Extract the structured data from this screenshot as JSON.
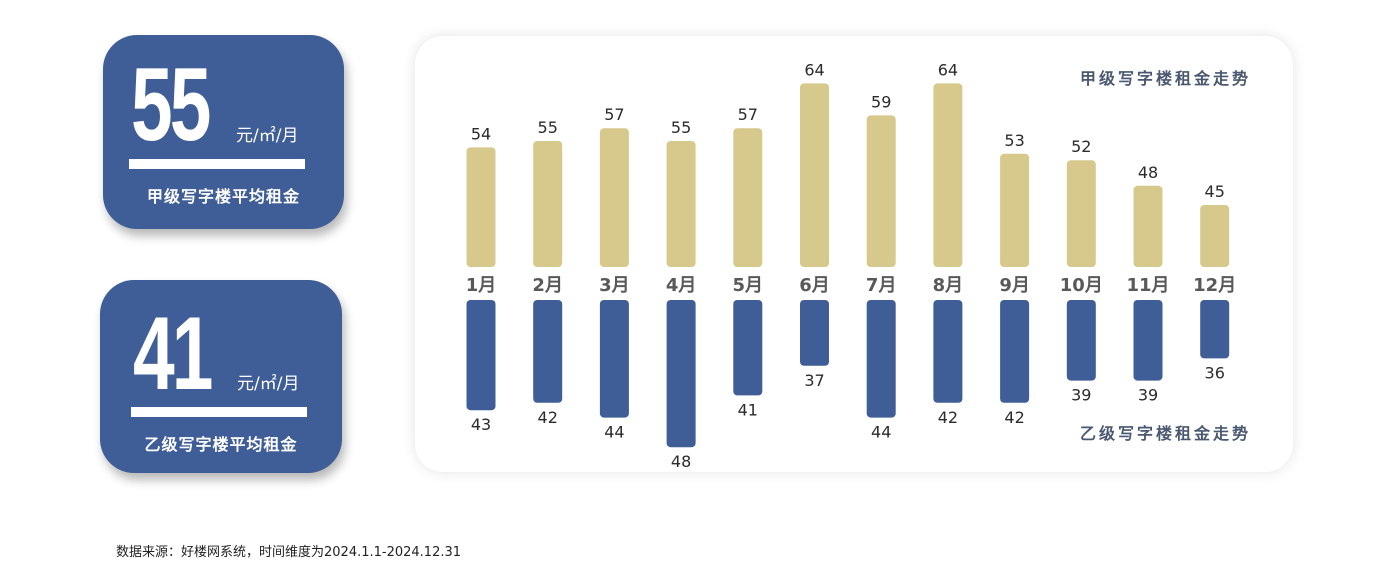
{
  "cards": [
    {
      "value": "55",
      "unit": "元/㎡/月",
      "label": "甲级写字楼平均租金"
    },
    {
      "value": "41",
      "unit": "元/㎡/月",
      "label": "乙级写字楼平均租金"
    }
  ],
  "source": "数据来源：好楼网系统，时间维度为2024.1.1-2024.12.31",
  "colors": {
    "card": "#3f5d96",
    "grade_a": "#d7c98c",
    "grade_b": "#3f5d96"
  },
  "chart_data": {
    "type": "bar",
    "categories": [
      "1月",
      "2月",
      "3月",
      "4月",
      "5月",
      "6月",
      "7月",
      "8月",
      "9月",
      "10月",
      "11月",
      "12月"
    ],
    "series": [
      {
        "name": "甲级写字楼租金走势",
        "values": [
          54,
          55,
          57,
          55,
          57,
          64,
          59,
          64,
          53,
          52,
          48,
          45
        ]
      },
      {
        "name": "乙级写字楼租金走势",
        "values": [
          43,
          42,
          44,
          48,
          41,
          37,
          44,
          42,
          42,
          39,
          39,
          36
        ]
      }
    ],
    "title": "",
    "xlabel": "",
    "ylabel": "",
    "grid": false
  }
}
